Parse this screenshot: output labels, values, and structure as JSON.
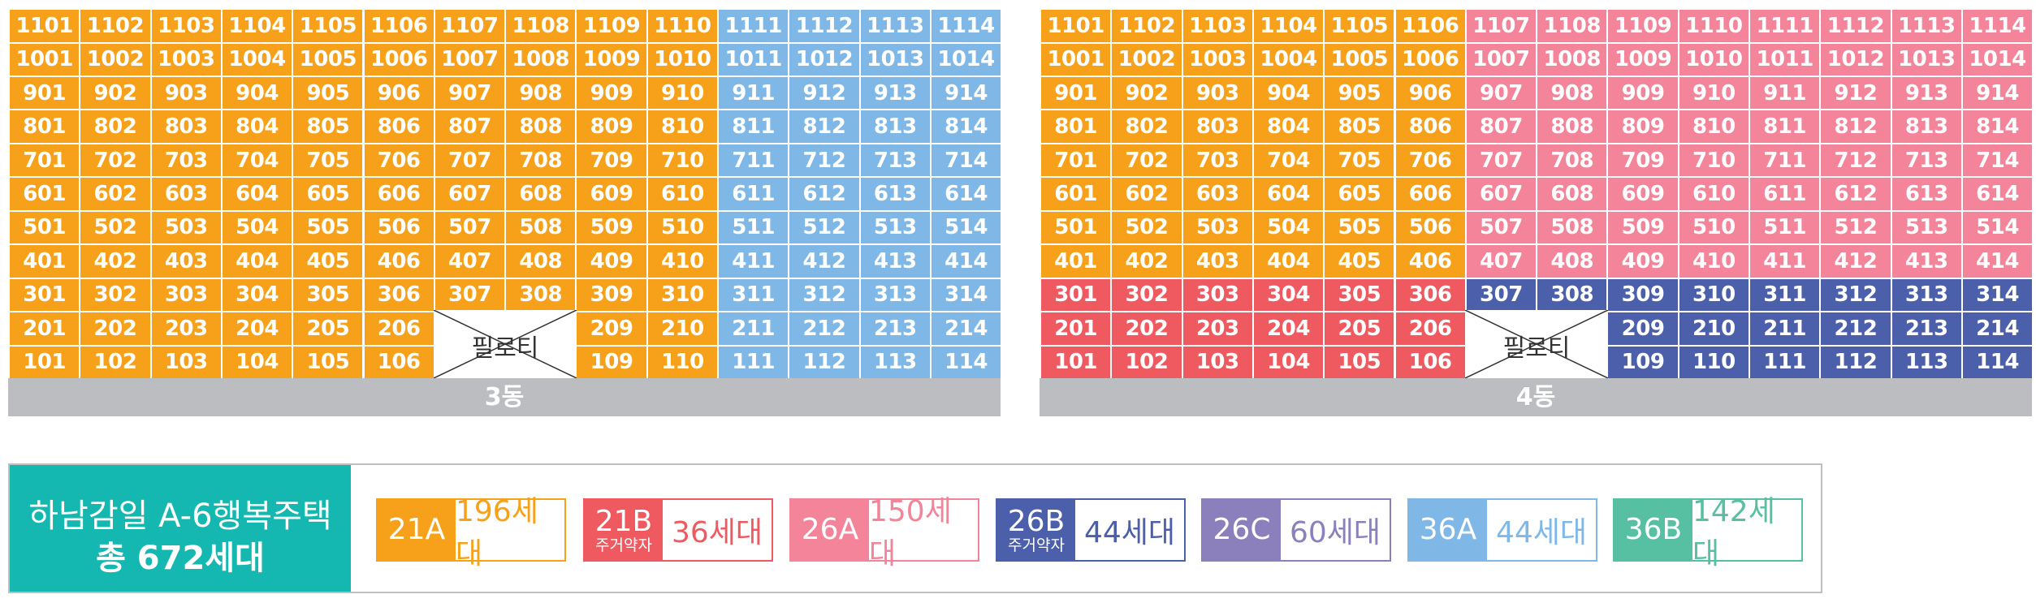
{
  "colors": {
    "21A": "#f7a11a",
    "21B": "#ef5a60",
    "26A": "#f3849a",
    "26B": "#4c5fab",
    "26C": "#8b80bb",
    "36A": "#7fb8e6",
    "36B": "#57c0a2"
  },
  "piloti_label": "필로티",
  "buildings": [
    {
      "name": "3동",
      "floor_types": {
        "11": [
          "21A",
          "21A",
          "21A",
          "21A",
          "21A",
          "21A",
          "21A",
          "21A",
          "21A",
          "21A",
          "36A",
          "36A",
          "36A",
          "36A"
        ],
        "10": [
          "21A",
          "21A",
          "21A",
          "21A",
          "21A",
          "21A",
          "21A",
          "21A",
          "21A",
          "21A",
          "36A",
          "36A",
          "36A",
          "36A"
        ],
        "9": [
          "21A",
          "21A",
          "21A",
          "21A",
          "21A",
          "21A",
          "21A",
          "21A",
          "21A",
          "21A",
          "36A",
          "36A",
          "36A",
          "36A"
        ],
        "8": [
          "21A",
          "21A",
          "21A",
          "21A",
          "21A",
          "21A",
          "21A",
          "21A",
          "21A",
          "21A",
          "36A",
          "36A",
          "36A",
          "36A"
        ],
        "7": [
          "21A",
          "21A",
          "21A",
          "21A",
          "21A",
          "21A",
          "21A",
          "21A",
          "21A",
          "21A",
          "36A",
          "36A",
          "36A",
          "36A"
        ],
        "6": [
          "21A",
          "21A",
          "21A",
          "21A",
          "21A",
          "21A",
          "21A",
          "21A",
          "21A",
          "21A",
          "36A",
          "36A",
          "36A",
          "36A"
        ],
        "5": [
          "21A",
          "21A",
          "21A",
          "21A",
          "21A",
          "21A",
          "21A",
          "21A",
          "21A",
          "21A",
          "36A",
          "36A",
          "36A",
          "36A"
        ],
        "4": [
          "21A",
          "21A",
          "21A",
          "21A",
          "21A",
          "21A",
          "21A",
          "21A",
          "21A",
          "21A",
          "36A",
          "36A",
          "36A",
          "36A"
        ],
        "3": [
          "21A",
          "21A",
          "21A",
          "21A",
          "21A",
          "21A",
          "21A",
          "21A",
          "21A",
          "21A",
          "36A",
          "36A",
          "36A",
          "36A"
        ],
        "2": [
          "21A",
          "21A",
          "21A",
          "21A",
          "21A",
          "21A",
          null,
          null,
          "21A",
          "21A",
          "36A",
          "36A",
          "36A",
          "36A"
        ],
        "1": [
          "21A",
          "21A",
          "21A",
          "21A",
          "21A",
          "21A",
          null,
          null,
          "21A",
          "21A",
          "36A",
          "36A",
          "36A",
          "36A"
        ]
      },
      "units": {
        "11": [
          "1101",
          "1102",
          "1103",
          "1104",
          "1105",
          "1106",
          "1107",
          "1108",
          "1109",
          "1110",
          "1111",
          "1112",
          "1113",
          "1114"
        ],
        "10": [
          "1001",
          "1002",
          "1003",
          "1004",
          "1005",
          "1006",
          "1007",
          "1008",
          "1009",
          "1010",
          "1011",
          "1012",
          "1013",
          "1014"
        ],
        "9": [
          "901",
          "902",
          "903",
          "904",
          "905",
          "906",
          "907",
          "908",
          "909",
          "910",
          "911",
          "912",
          "913",
          "914"
        ],
        "8": [
          "801",
          "802",
          "803",
          "804",
          "805",
          "806",
          "807",
          "808",
          "809",
          "810",
          "811",
          "812",
          "813",
          "814"
        ],
        "7": [
          "701",
          "702",
          "703",
          "704",
          "705",
          "706",
          "707",
          "708",
          "709",
          "710",
          "711",
          "712",
          "713",
          "714"
        ],
        "6": [
          "601",
          "602",
          "603",
          "604",
          "605",
          "606",
          "607",
          "608",
          "609",
          "610",
          "611",
          "612",
          "613",
          "614"
        ],
        "5": [
          "501",
          "502",
          "503",
          "504",
          "505",
          "506",
          "507",
          "508",
          "509",
          "510",
          "511",
          "512",
          "513",
          "514"
        ],
        "4": [
          "401",
          "402",
          "403",
          "404",
          "405",
          "406",
          "407",
          "408",
          "409",
          "410",
          "411",
          "412",
          "413",
          "414"
        ],
        "3": [
          "301",
          "302",
          "303",
          "304",
          "305",
          "306",
          "307",
          "308",
          "309",
          "310",
          "311",
          "312",
          "313",
          "314"
        ],
        "2": [
          "201",
          "202",
          "203",
          "204",
          "205",
          "206",
          null,
          null,
          "209",
          "210",
          "211",
          "212",
          "213",
          "214"
        ],
        "1": [
          "101",
          "102",
          "103",
          "104",
          "105",
          "106",
          null,
          null,
          "109",
          "110",
          "111",
          "112",
          "113",
          "114"
        ]
      }
    },
    {
      "name": "4동",
      "floor_types": {
        "11": [
          "21A",
          "21A",
          "21A",
          "21A",
          "21A",
          "21A",
          "26A",
          "26A",
          "26A",
          "26A",
          "26A",
          "26A",
          "26A",
          "26A"
        ],
        "10": [
          "21A",
          "21A",
          "21A",
          "21A",
          "21A",
          "21A",
          "26A",
          "26A",
          "26A",
          "26A",
          "26A",
          "26A",
          "26A",
          "26A"
        ],
        "9": [
          "21A",
          "21A",
          "21A",
          "21A",
          "21A",
          "21A",
          "26A",
          "26A",
          "26A",
          "26A",
          "26A",
          "26A",
          "26A",
          "26A"
        ],
        "8": [
          "21A",
          "21A",
          "21A",
          "21A",
          "21A",
          "21A",
          "26A",
          "26A",
          "26A",
          "26A",
          "26A",
          "26A",
          "26A",
          "26A"
        ],
        "7": [
          "21A",
          "21A",
          "21A",
          "21A",
          "21A",
          "21A",
          "26A",
          "26A",
          "26A",
          "26A",
          "26A",
          "26A",
          "26A",
          "26A"
        ],
        "6": [
          "21A",
          "21A",
          "21A",
          "21A",
          "21A",
          "21A",
          "26A",
          "26A",
          "26A",
          "26A",
          "26A",
          "26A",
          "26A",
          "26A"
        ],
        "5": [
          "21A",
          "21A",
          "21A",
          "21A",
          "21A",
          "21A",
          "26A",
          "26A",
          "26A",
          "26A",
          "26A",
          "26A",
          "26A",
          "26A"
        ],
        "4": [
          "21A",
          "21A",
          "21A",
          "21A",
          "21A",
          "21A",
          "26A",
          "26A",
          "26A",
          "26A",
          "26A",
          "26A",
          "26A",
          "26A"
        ],
        "3": [
          "21B",
          "21B",
          "21B",
          "21B",
          "21B",
          "21B",
          "26B",
          "26B",
          "26B",
          "26B",
          "26B",
          "26B",
          "26B",
          "26B"
        ],
        "2": [
          "21B",
          "21B",
          "21B",
          "21B",
          "21B",
          "21B",
          null,
          null,
          "26B",
          "26B",
          "26B",
          "26B",
          "26B",
          "26B"
        ],
        "1": [
          "21B",
          "21B",
          "21B",
          "21B",
          "21B",
          "21B",
          null,
          null,
          "26B",
          "26B",
          "26B",
          "26B",
          "26B",
          "26B"
        ]
      },
      "units": {
        "11": [
          "1101",
          "1102",
          "1103",
          "1104",
          "1105",
          "1106",
          "1107",
          "1108",
          "1109",
          "1110",
          "1111",
          "1112",
          "1113",
          "1114"
        ],
        "10": [
          "1001",
          "1002",
          "1003",
          "1004",
          "1005",
          "1006",
          "1007",
          "1008",
          "1009",
          "1010",
          "1011",
          "1012",
          "1013",
          "1014"
        ],
        "9": [
          "901",
          "902",
          "903",
          "904",
          "905",
          "906",
          "907",
          "908",
          "909",
          "910",
          "911",
          "912",
          "913",
          "914"
        ],
        "8": [
          "801",
          "802",
          "803",
          "804",
          "805",
          "806",
          "807",
          "808",
          "809",
          "810",
          "811",
          "812",
          "813",
          "814"
        ],
        "7": [
          "701",
          "702",
          "703",
          "704",
          "705",
          "706",
          "707",
          "708",
          "709",
          "710",
          "711",
          "712",
          "713",
          "714"
        ],
        "6": [
          "601",
          "602",
          "603",
          "604",
          "605",
          "606",
          "607",
          "608",
          "609",
          "610",
          "611",
          "612",
          "613",
          "614"
        ],
        "5": [
          "501",
          "502",
          "503",
          "504",
          "505",
          "506",
          "507",
          "508",
          "509",
          "510",
          "511",
          "512",
          "513",
          "514"
        ],
        "4": [
          "401",
          "402",
          "403",
          "404",
          "405",
          "406",
          "407",
          "408",
          "409",
          "410",
          "411",
          "412",
          "413",
          "414"
        ],
        "3": [
          "301",
          "302",
          "303",
          "304",
          "305",
          "306",
          "307",
          "308",
          "309",
          "310",
          "311",
          "312",
          "313",
          "314"
        ],
        "2": [
          "201",
          "202",
          "203",
          "204",
          "205",
          "206",
          null,
          null,
          "209",
          "210",
          "211",
          "212",
          "213",
          "214"
        ],
        "1": [
          "101",
          "102",
          "103",
          "104",
          "105",
          "106",
          null,
          null,
          "109",
          "110",
          "111",
          "112",
          "113",
          "114"
        ]
      }
    }
  ],
  "legend": {
    "title_line1": "하남감일 A-6행복주택",
    "title_line2": "총 672세대",
    "items": [
      {
        "code": "21A",
        "sub": "",
        "count": "196세대"
      },
      {
        "code": "21B",
        "sub": "주거약자",
        "count": "36세대"
      },
      {
        "code": "26A",
        "sub": "",
        "count": "150세대"
      },
      {
        "code": "26B",
        "sub": "주거약자",
        "count": "44세대"
      },
      {
        "code": "26C",
        "sub": "",
        "count": "60세대"
      },
      {
        "code": "36A",
        "sub": "",
        "count": "44세대"
      },
      {
        "code": "36B",
        "sub": "",
        "count": "142세대"
      }
    ]
  }
}
